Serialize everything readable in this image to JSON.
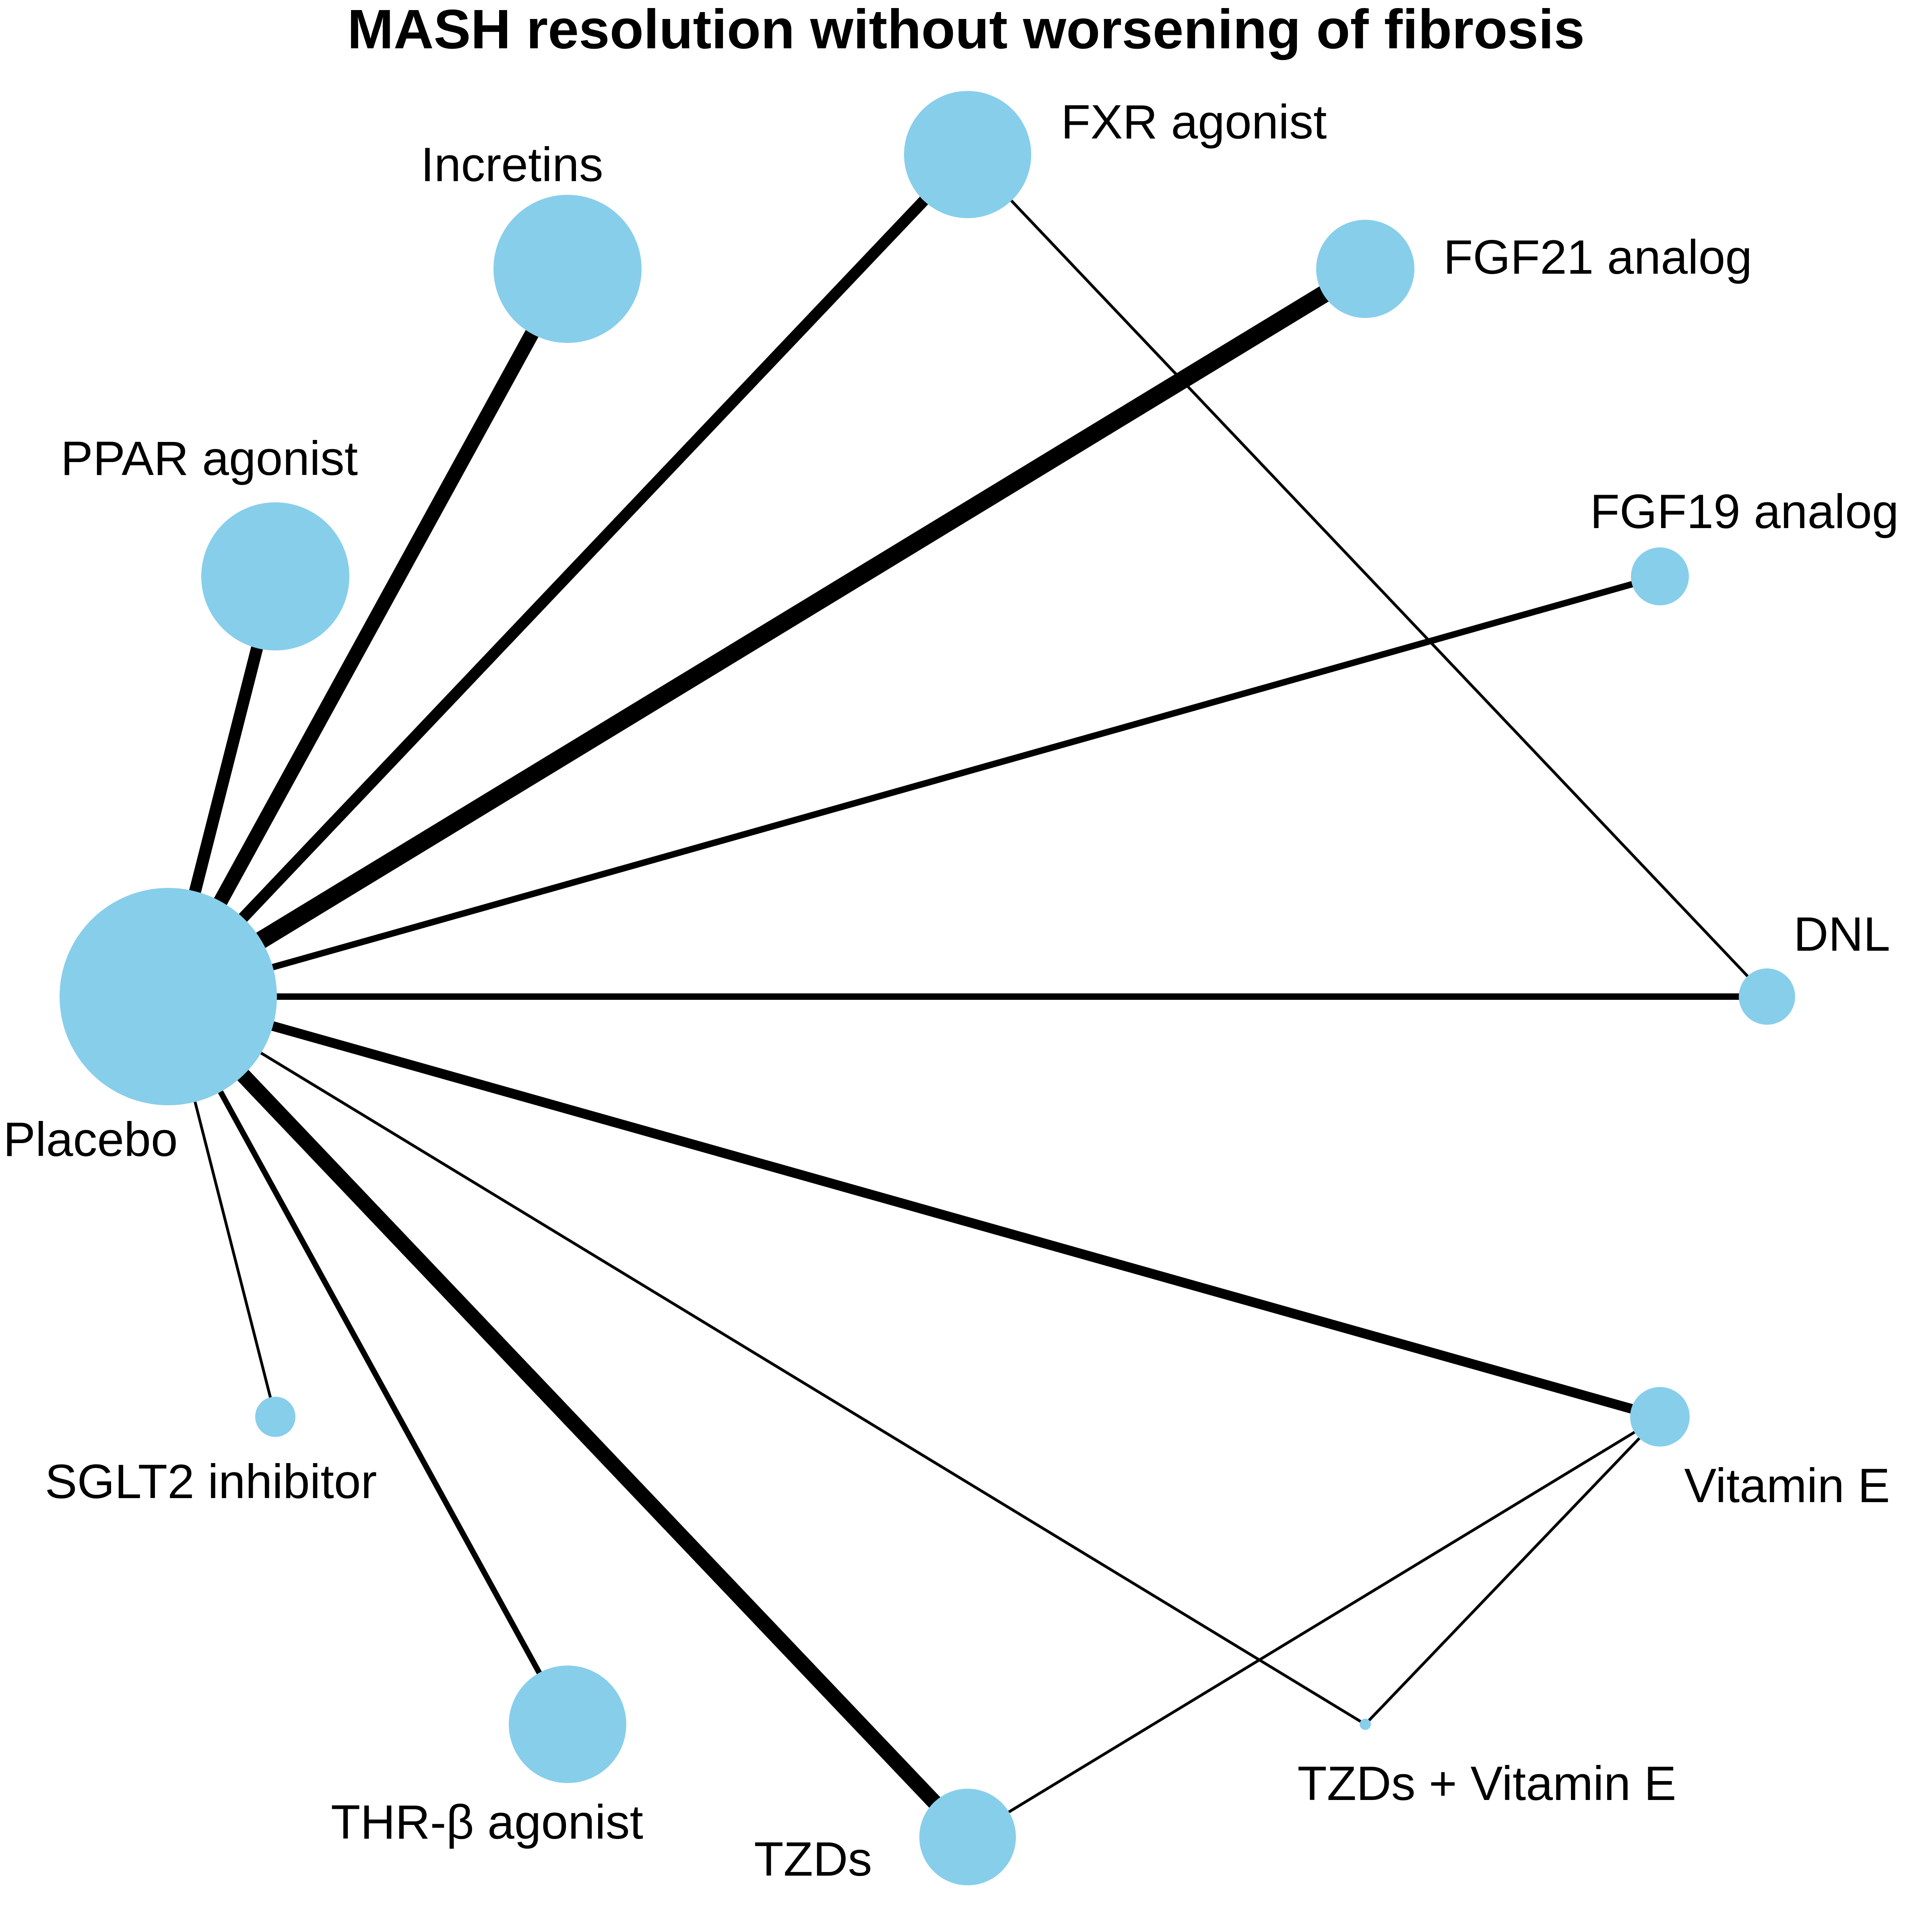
{
  "title": "MASH resolution without worsening of fibrosis",
  "colors": {
    "node": "#87CEEB",
    "edge": "#000000"
  },
  "nodes": [
    {
      "id": "placebo",
      "label": "Placebo"
    },
    {
      "id": "ppar",
      "label": "PPAR agonist"
    },
    {
      "id": "incretins",
      "label": "Incretins"
    },
    {
      "id": "fxr",
      "label": "FXR agonist"
    },
    {
      "id": "fgf21",
      "label": "FGF21 analog"
    },
    {
      "id": "fgf19",
      "label": "FGF19 analog"
    },
    {
      "id": "dnl",
      "label": "DNL"
    },
    {
      "id": "vite",
      "label": "Vitamin E"
    },
    {
      "id": "tzdvite",
      "label": "TZDs + Vitamin E"
    },
    {
      "id": "tzds",
      "label": "TZDs"
    },
    {
      "id": "thrb",
      "label": "THR-β agonist"
    },
    {
      "id": "sglt2",
      "label": "SGLT2 inhibitor"
    }
  ],
  "edges": [
    {
      "from": "placebo",
      "to": "ppar"
    },
    {
      "from": "placebo",
      "to": "incretins"
    },
    {
      "from": "placebo",
      "to": "fxr"
    },
    {
      "from": "placebo",
      "to": "fgf21"
    },
    {
      "from": "placebo",
      "to": "fgf19"
    },
    {
      "from": "placebo",
      "to": "dnl"
    },
    {
      "from": "placebo",
      "to": "vite"
    },
    {
      "from": "placebo",
      "to": "tzdvite"
    },
    {
      "from": "placebo",
      "to": "tzds"
    },
    {
      "from": "placebo",
      "to": "thrb"
    },
    {
      "from": "placebo",
      "to": "sglt2"
    },
    {
      "from": "fxr",
      "to": "dnl"
    },
    {
      "from": "vite",
      "to": "tzds"
    },
    {
      "from": "vite",
      "to": "tzdvite"
    }
  ]
}
